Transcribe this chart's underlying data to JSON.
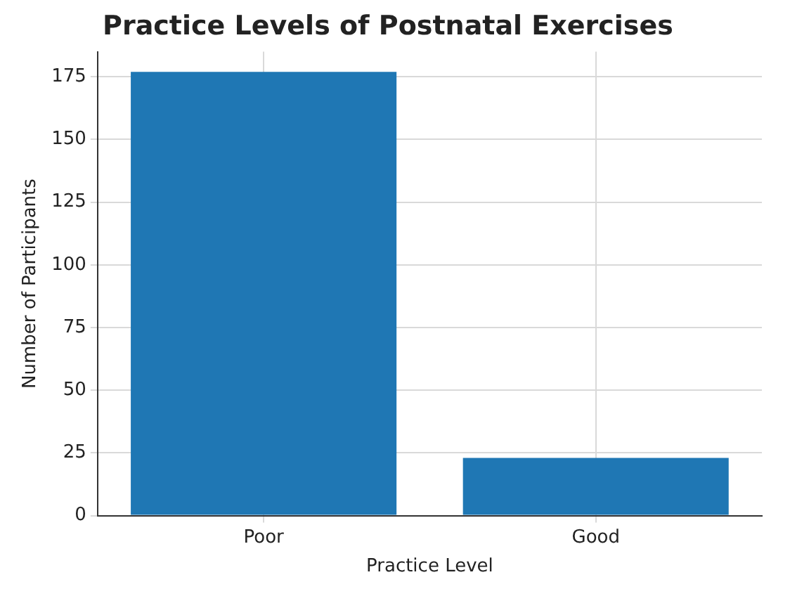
{
  "chart_data": {
    "type": "bar",
    "title": "Practice Levels of Postnatal Exercises",
    "xlabel": "Practice Level",
    "ylabel": "Number of Participants",
    "categories": [
      "Poor",
      "Good"
    ],
    "values": [
      177,
      23
    ],
    "color": "#1f77b4",
    "ylim": [
      0,
      185
    ],
    "yticks": [
      0,
      25,
      50,
      75,
      100,
      125,
      150,
      175
    ],
    "grid": true
  }
}
